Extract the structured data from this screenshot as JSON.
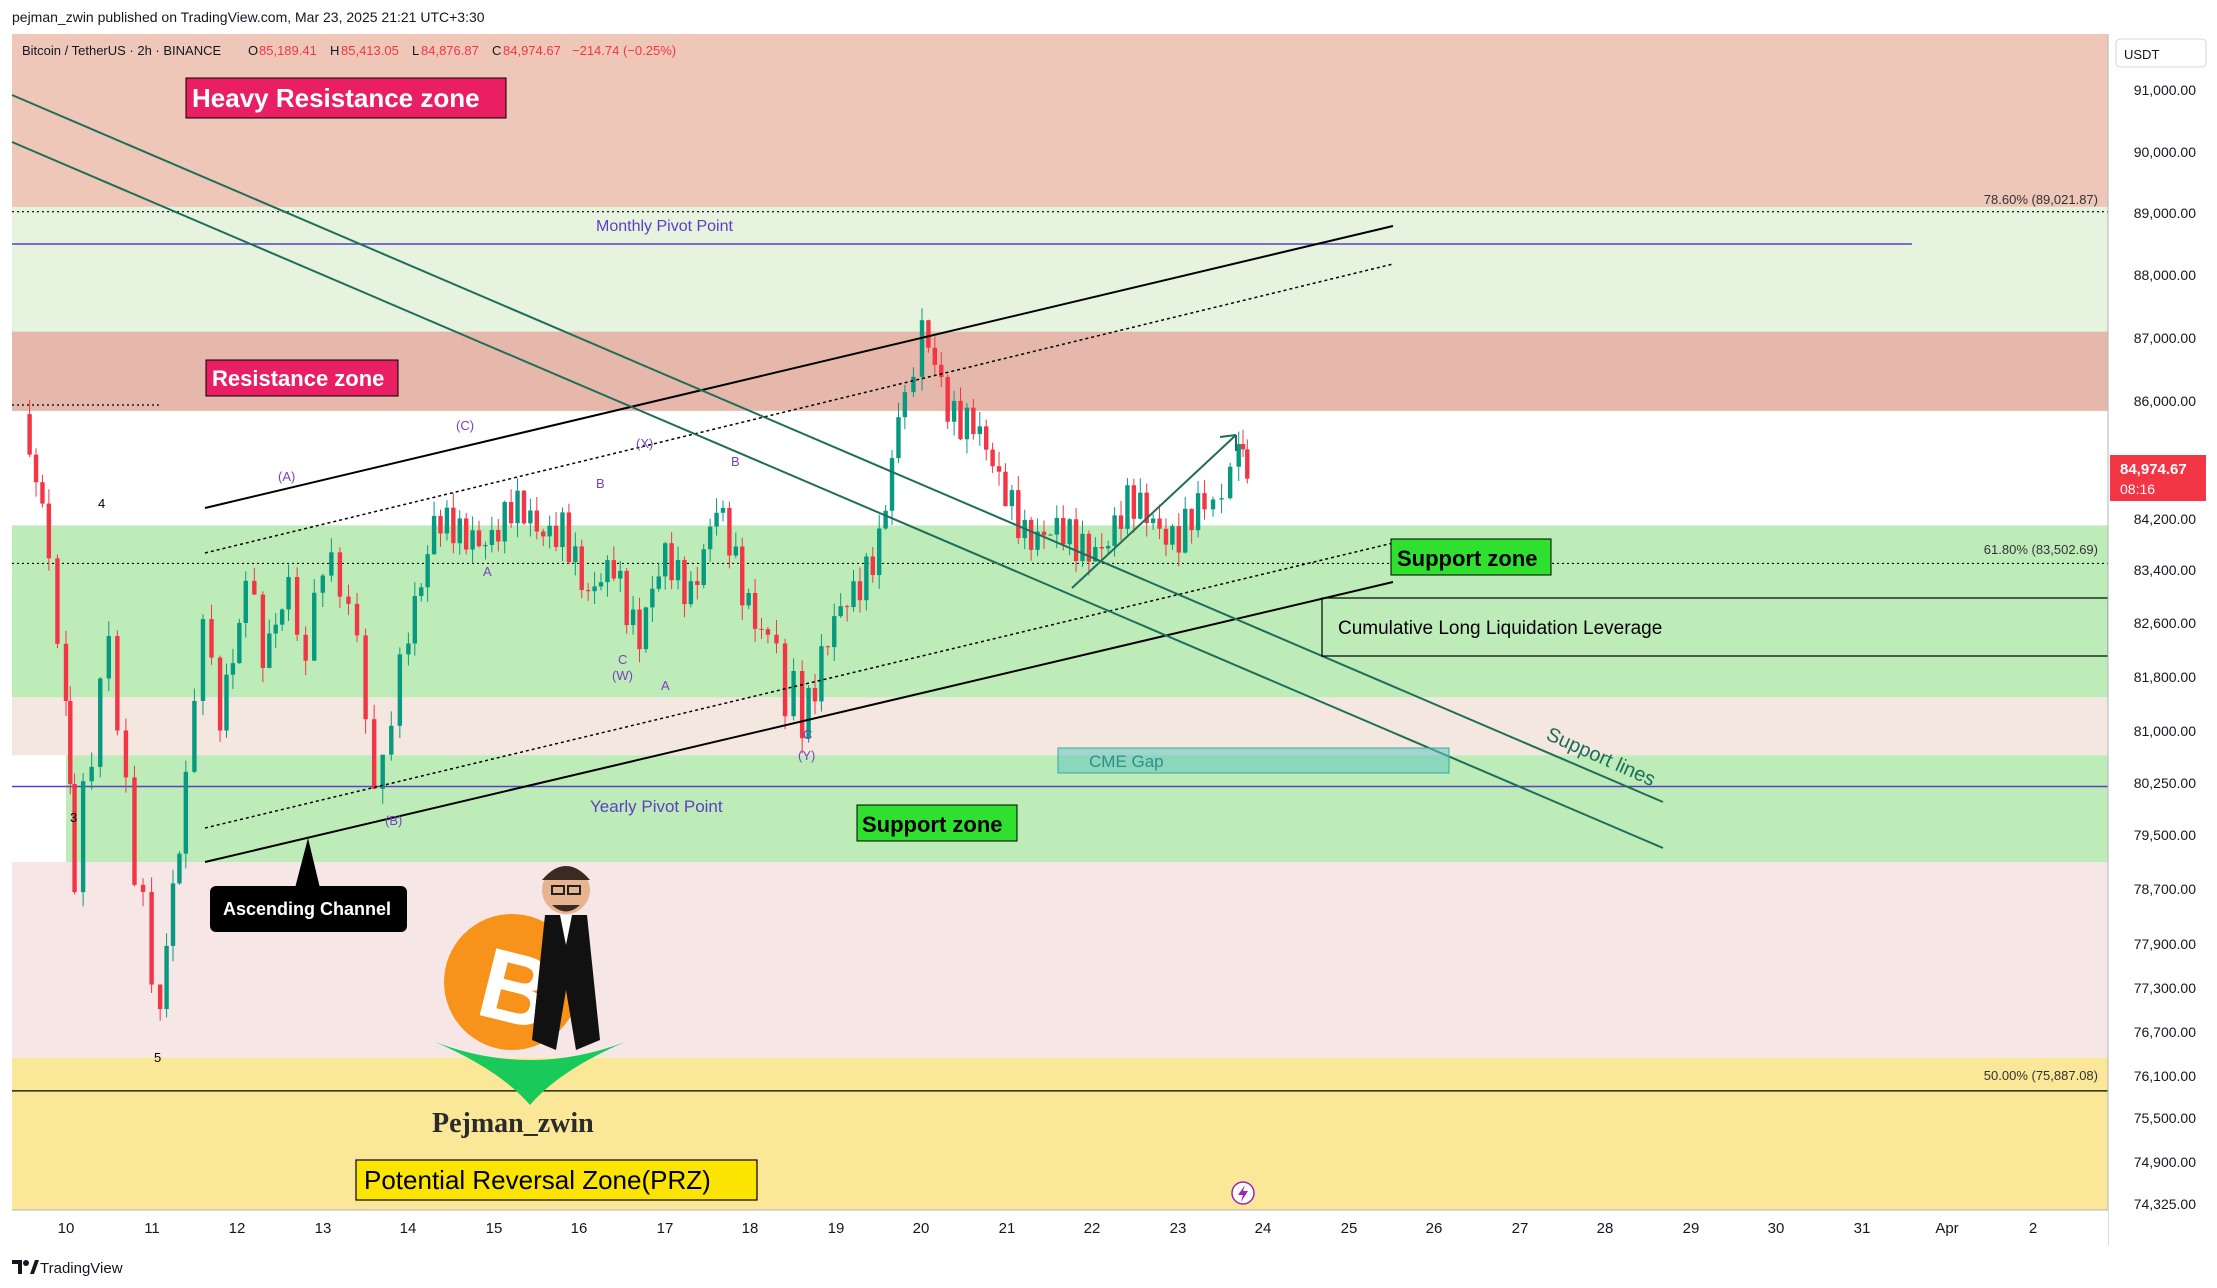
{
  "header": {
    "publish_line": "pejman_zwin published on TradingView.com, Mar 23, 2025 21:21 UTC+3:30",
    "symbol": "Bitcoin / TetherUS · 2h · BINANCE",
    "o_label": "O",
    "o_value": "85,189.41",
    "h_label": "H",
    "h_value": "85,413.05",
    "l_label": "L",
    "l_value": "84,876.87",
    "c_label": "C",
    "c_value": "84,974.67",
    "change": "−214.74 (−0.25%)"
  },
  "footer": {
    "brand": "TradingView"
  },
  "price_badge": {
    "price": "84,974.67",
    "countdown": "08:16"
  },
  "colors": {
    "up": "#089981",
    "down": "#f23645",
    "pivot": "#5b3fc4",
    "channel": "#000000",
    "support_lines": "#1e6e5a",
    "resistance_fill": "#e8b4a0",
    "support_fill": "#a8e6a0",
    "prz_fill": "#fbe48d"
  },
  "chart_data": {
    "type": "candlestick",
    "title": "",
    "xlabel": "",
    "ylabel": "",
    "currency": "USDT",
    "ylim": [
      74150,
      92200
    ],
    "y_ticks": [
      91000,
      90000,
      89000,
      88000,
      87000,
      86000,
      84200,
      83400,
      82600,
      81800,
      81000,
      80250,
      79500,
      78700,
      77900,
      77300,
      76700,
      76100,
      75500,
      74900,
      74325
    ],
    "y_tick_labels": [
      "91,000.00",
      "90,000.00",
      "89,000.00",
      "88,000.00",
      "87,000.00",
      "86,000.00",
      "84,200.00",
      "83,400.00",
      "82,600.00",
      "81,800.00",
      "81,000.00",
      "80,250.00",
      "79,500.00",
      "78,700.00",
      "77,900.00",
      "77,300.00",
      "76,700.00",
      "76,100.00",
      "75,500.00",
      "74,900.00",
      "74,325.00"
    ],
    "x_ticks": [
      "10",
      "11",
      "12",
      "13",
      "14",
      "15",
      "16",
      "17",
      "18",
      "19",
      "20",
      "21",
      "22",
      "23",
      "24",
      "25",
      "26",
      "27",
      "28",
      "29",
      "30",
      "31",
      "Apr",
      "2"
    ],
    "x_domain_days": [
      9.4,
      34.5
    ],
    "candles_close_path": [
      [
        9.5,
        85800
      ],
      [
        9.8,
        83600
      ],
      [
        10.0,
        81200
      ],
      [
        10.1,
        79000
      ],
      [
        10.3,
        80800
      ],
      [
        10.5,
        82400
      ],
      [
        10.7,
        80000
      ],
      [
        10.9,
        78300
      ],
      [
        11.1,
        76900
      ],
      [
        11.4,
        80300
      ],
      [
        11.6,
        82700
      ],
      [
        11.8,
        81200
      ],
      [
        12.1,
        83300
      ],
      [
        12.3,
        82300
      ],
      [
        12.6,
        83000
      ],
      [
        12.8,
        82100
      ],
      [
        13.0,
        83600
      ],
      [
        13.2,
        83200
      ],
      [
        13.4,
        82400
      ],
      [
        13.6,
        80100
      ],
      [
        13.8,
        81200
      ],
      [
        14.0,
        82600
      ],
      [
        14.3,
        84200
      ],
      [
        14.6,
        83800
      ],
      [
        14.9,
        84000
      ],
      [
        15.2,
        84300
      ],
      [
        15.5,
        84000
      ],
      [
        15.8,
        84200
      ],
      [
        16.1,
        82800
      ],
      [
        16.4,
        83600
      ],
      [
        16.7,
        82400
      ],
      [
        17.0,
        83500
      ],
      [
        17.3,
        83200
      ],
      [
        17.6,
        84300
      ],
      [
        17.9,
        83100
      ],
      [
        18.2,
        82500
      ],
      [
        18.4,
        81600
      ],
      [
        18.6,
        81300
      ],
      [
        18.9,
        82300
      ],
      [
        19.2,
        83000
      ],
      [
        19.5,
        84000
      ],
      [
        19.8,
        86100
      ],
      [
        20.0,
        87000
      ],
      [
        20.3,
        85900
      ],
      [
        20.6,
        85800
      ],
      [
        20.9,
        84600
      ],
      [
        21.2,
        84100
      ],
      [
        21.5,
        84000
      ],
      [
        21.8,
        83700
      ],
      [
        22.1,
        83900
      ],
      [
        22.4,
        84300
      ],
      [
        22.7,
        84200
      ],
      [
        23.0,
        84000
      ],
      [
        23.3,
        84300
      ],
      [
        23.5,
        84600
      ],
      [
        23.7,
        85300
      ],
      [
        23.8,
        84970
      ]
    ],
    "zones": [
      {
        "name": "Heavy Resistance zone",
        "from": 89100,
        "to": 92200
      },
      {
        "name": "Resistance zone",
        "from": 85850,
        "to": 87100
      },
      {
        "name": "Support zone",
        "from": 81500,
        "to": 84100
      },
      {
        "name": "Support zone",
        "from": 79100,
        "to": 80650
      },
      {
        "name": "Potential Reversal Zone(PRZ)",
        "from": 74150,
        "to": 76350
      }
    ],
    "levels": [
      {
        "name": "Monthly Pivot Point",
        "value": 88500
      },
      {
        "name": "Yearly Pivot Point",
        "value": 80200
      },
      {
        "name": "78.60%",
        "value": 89021.87,
        "label": "78.60% (89,021.87)"
      },
      {
        "name": "61.80%",
        "value": 83502.69,
        "label": "61.80% (83,502.69)"
      },
      {
        "name": "50.00%",
        "value": 75887.08,
        "label": "50.00% (75,887.08)"
      }
    ],
    "annotations": {
      "heavy_resistance": "Heavy Resistance zone",
      "resistance": "Resistance zone",
      "support_upper": "Support zone",
      "support_lower": "Support zone",
      "monthly_pivot": "Monthly Pivot Point",
      "yearly_pivot": "Yearly Pivot Point",
      "cumulative": "Cumulative Long Liquidation Leverage",
      "cme_gap": "CME Gap",
      "support_lines": "Support lines",
      "ascending_channel": "Ascending Channel",
      "prz": "Potential Reversal Zone(PRZ)",
      "author": "Pejman_zwin",
      "btc_symbol": "B",
      "fib_786": "78.60% (89,021.87)",
      "fib_618": "61.80% (83,502.69)",
      "fib_500": "50.00% (75,887.08)"
    },
    "wave_labels": [
      "4",
      "3",
      "5",
      "(A)",
      "(B)",
      "(C)",
      "A",
      "B",
      "C",
      "(W)",
      "(X)",
      "A",
      "B",
      "C",
      "(Y)"
    ]
  }
}
